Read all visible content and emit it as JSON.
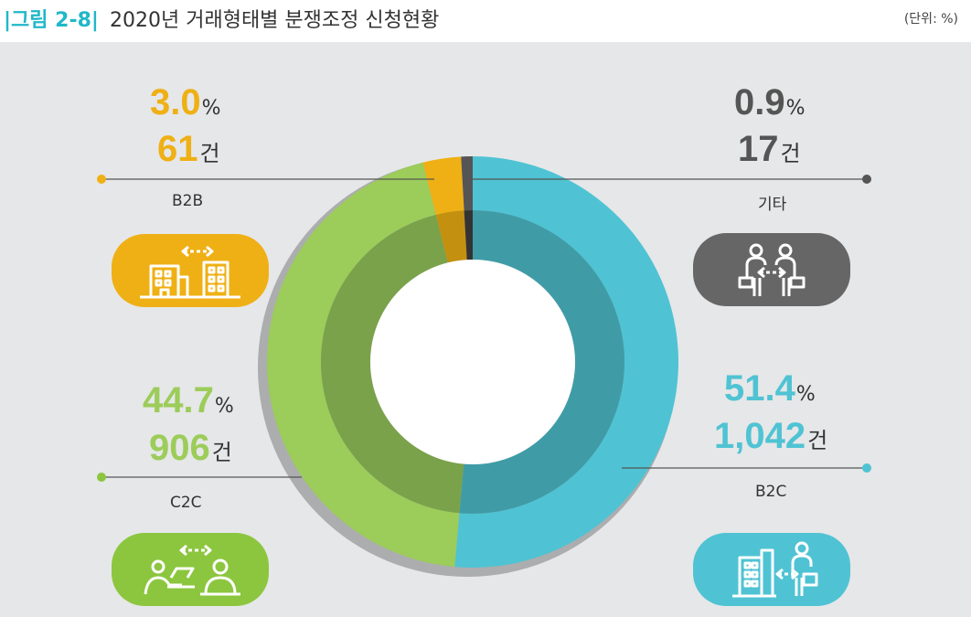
{
  "header": {
    "figure_label": "|그림 2-8|",
    "title": "2020년 거래형태별 분쟁조정 신청현황",
    "unit": "(단위: %)"
  },
  "colors": {
    "B2C": "#4fc3d3",
    "C2C": "#9ccc5a",
    "B2B": "#efb015",
    "기타": "#555555",
    "panel": "#e6e7e8",
    "title_accent": "#20b8c8"
  },
  "segments": {
    "b2b": {
      "pct": "3.0",
      "pct_unit": "%",
      "count": "61",
      "count_unit": "건",
      "label": "B2B",
      "icon": "buildings-exchange-icon"
    },
    "etc": {
      "pct": "0.9",
      "pct_unit": "%",
      "count": "17",
      "count_unit": "건",
      "label": "기타",
      "icon": "people-exchange-icon"
    },
    "c2c": {
      "pct": "44.7",
      "pct_unit": "%",
      "count": "906",
      "count_unit": "건",
      "label": "C2C",
      "icon": "consumers-exchange-icon"
    },
    "b2c": {
      "pct": "51.4",
      "pct_unit": "%",
      "count": "1,042",
      "count_unit": "건",
      "label": "B2C",
      "icon": "business-consumer-exchange-icon"
    }
  },
  "chart_data": {
    "type": "pie",
    "title": "2020년 거래형태별 분쟁조정 신청현황",
    "unit": "%",
    "categories": [
      "B2C",
      "C2C",
      "B2B",
      "기타"
    ],
    "values": [
      51.4,
      44.7,
      3.0,
      0.9
    ],
    "counts": [
      1042,
      906,
      61,
      17
    ],
    "donut": true
  }
}
